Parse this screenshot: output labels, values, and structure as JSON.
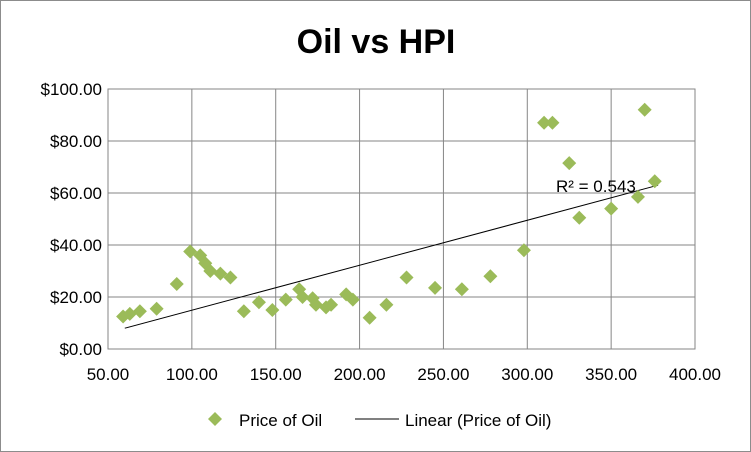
{
  "chart_data": {
    "type": "scatter",
    "title": "Oil vs HPI",
    "xlabel": "",
    "ylabel": "",
    "xlim": [
      50,
      400
    ],
    "ylim": [
      0,
      100
    ],
    "x_ticks": [
      50,
      100,
      150,
      200,
      250,
      300,
      350,
      400
    ],
    "x_tick_labels": [
      "50.00",
      "100.00",
      "150.00",
      "200.00",
      "250.00",
      "300.00",
      "350.00",
      "400.00"
    ],
    "y_ticks": [
      0,
      20,
      40,
      60,
      80,
      100
    ],
    "y_tick_labels": [
      "$0.00",
      "$20.00",
      "$40.00",
      "$60.00",
      "$80.00",
      "$100.00"
    ],
    "grid": true,
    "legend_position": "bottom",
    "series": [
      {
        "name": "Price of Oil",
        "marker": "diamond",
        "color": "#9BBB59",
        "points": [
          [
            59,
            12.5
          ],
          [
            63,
            13.5
          ],
          [
            69,
            14.5
          ],
          [
            79,
            15.5
          ],
          [
            91,
            25
          ],
          [
            99,
            37.5
          ],
          [
            105,
            36
          ],
          [
            108,
            33
          ],
          [
            111,
            30
          ],
          [
            117,
            29
          ],
          [
            123,
            27.5
          ],
          [
            131,
            14.5
          ],
          [
            140,
            18
          ],
          [
            148,
            15
          ],
          [
            156,
            19
          ],
          [
            164,
            23
          ],
          [
            166,
            20
          ],
          [
            172,
            19.5
          ],
          [
            174,
            17
          ],
          [
            180,
            16
          ],
          [
            183,
            17
          ],
          [
            192,
            21
          ],
          [
            196,
            19
          ],
          [
            206,
            12
          ],
          [
            216,
            17
          ],
          [
            228,
            27.5
          ],
          [
            245,
            23.5
          ],
          [
            261,
            23
          ],
          [
            278,
            28
          ],
          [
            298,
            38
          ],
          [
            310,
            87
          ],
          [
            315,
            87
          ],
          [
            325,
            71.5
          ],
          [
            331,
            50.5
          ],
          [
            350,
            54
          ],
          [
            366,
            58.5
          ],
          [
            370,
            92
          ],
          [
            376,
            64.5
          ]
        ]
      },
      {
        "name": "Linear (Price of Oil)",
        "type": "line",
        "color": "#000000",
        "points": [
          [
            60,
            8
          ],
          [
            378,
            63
          ]
        ]
      }
    ],
    "annotations": [
      {
        "text": "R² = 0.543",
        "x": 340,
        "y": 61
      }
    ]
  }
}
